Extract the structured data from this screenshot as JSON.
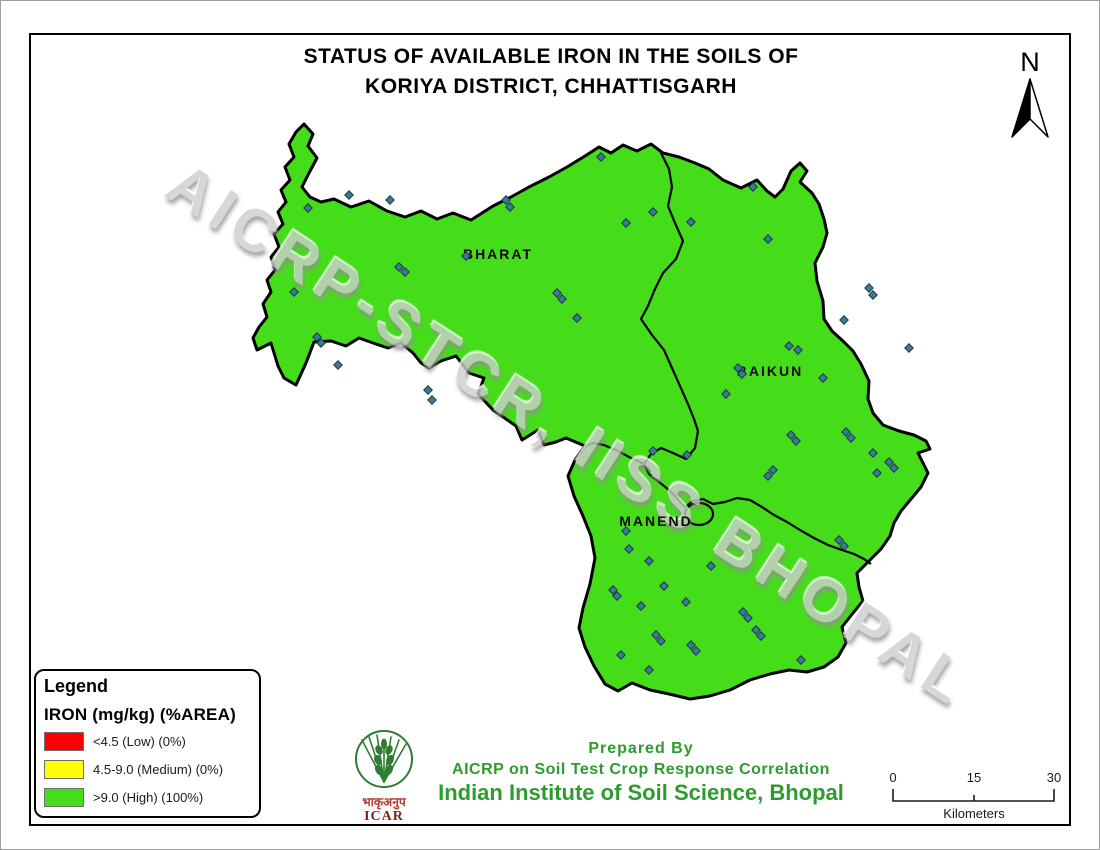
{
  "title": {
    "line1": "STATUS OF AVAILABLE IRON IN THE SOILS OF",
    "line2": "KORIYA  DISTRICT, CHHATTISGARH"
  },
  "north_arrow": {
    "label": "N"
  },
  "map": {
    "watermark": "AICRP-STCR, IISS BHOPAL",
    "fill_color": "#45DC1A",
    "boundary_color": "#000000",
    "region_labels": [
      {
        "name": "BHARAT"
      },
      {
        "name": "BAIKUN"
      },
      {
        "name": "MANEND"
      }
    ],
    "sample_point_color": "#3E7A96",
    "sample_point_stroke": "#163B4F",
    "sample_points": [
      [
        307,
        207
      ],
      [
        348,
        194
      ],
      [
        389,
        199
      ],
      [
        465,
        255
      ],
      [
        398,
        266
      ],
      [
        404,
        271
      ],
      [
        505,
        199
      ],
      [
        509,
        206
      ],
      [
        600,
        156
      ],
      [
        625,
        222
      ],
      [
        652,
        211
      ],
      [
        690,
        221
      ],
      [
        556,
        292
      ],
      [
        561,
        298
      ],
      [
        576,
        317
      ],
      [
        293,
        291
      ],
      [
        316,
        336
      ],
      [
        320,
        342
      ],
      [
        427,
        389
      ],
      [
        431,
        399
      ],
      [
        337,
        364
      ],
      [
        752,
        186
      ],
      [
        767,
        238
      ],
      [
        868,
        287
      ],
      [
        872,
        294
      ],
      [
        843,
        319
      ],
      [
        908,
        347
      ],
      [
        788,
        345
      ],
      [
        797,
        349
      ],
      [
        737,
        367
      ],
      [
        741,
        373
      ],
      [
        822,
        377
      ],
      [
        725,
        393
      ],
      [
        790,
        434
      ],
      [
        795,
        440
      ],
      [
        845,
        431
      ],
      [
        850,
        437
      ],
      [
        872,
        452
      ],
      [
        888,
        461
      ],
      [
        893,
        467
      ],
      [
        652,
        450
      ],
      [
        686,
        454
      ],
      [
        772,
        469
      ],
      [
        767,
        475
      ],
      [
        838,
        539
      ],
      [
        843,
        545
      ],
      [
        876,
        472
      ],
      [
        625,
        530
      ],
      [
        612,
        589
      ],
      [
        616,
        595
      ],
      [
        640,
        605
      ],
      [
        655,
        634
      ],
      [
        660,
        640
      ],
      [
        690,
        644
      ],
      [
        695,
        650
      ],
      [
        620,
        654
      ],
      [
        648,
        669
      ],
      [
        755,
        629
      ],
      [
        760,
        635
      ],
      [
        800,
        659
      ],
      [
        742,
        611
      ],
      [
        747,
        617
      ],
      [
        685,
        601
      ],
      [
        710,
        565
      ],
      [
        648,
        560
      ],
      [
        628,
        548
      ],
      [
        663,
        585
      ]
    ]
  },
  "legend": {
    "title": "Legend",
    "subtitle": "IRON (mg/kg) (%AREA)",
    "items": [
      {
        "color": "#FF0000",
        "label": "<4.5 (Low) (0%)"
      },
      {
        "color": "#FFFF00",
        "label": "4.5-9.0 (Medium) (0%)"
      },
      {
        "color": "#45DC1A",
        "label": ">9.0 (High) (100%)"
      }
    ]
  },
  "logo": {
    "hindi": "भाकृअनुप",
    "acronym": "ICAR"
  },
  "credits": {
    "prepared_by": "Prepared By",
    "line2": "AICRP on Soil Test Crop Response Correlation",
    "line3": "Indian Institute of Soil Science, Bhopal",
    "color": "#2e9b2e"
  },
  "scale_bar": {
    "ticks": [
      "0",
      "15",
      "30"
    ],
    "unit": "Kilometers"
  }
}
